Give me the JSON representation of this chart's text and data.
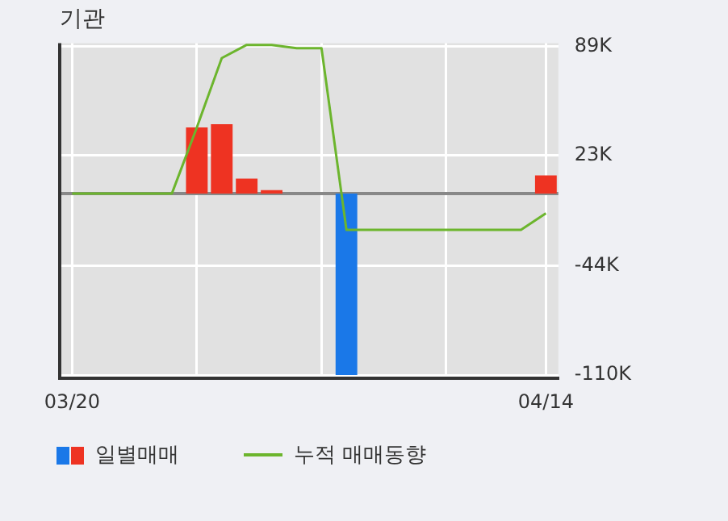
{
  "chart_data": {
    "type": "bar",
    "title": "기관",
    "categories": [
      "03/20",
      null,
      null,
      null,
      null,
      null,
      null,
      null,
      null,
      null,
      null,
      null,
      null,
      null,
      null,
      null,
      null,
      null,
      null,
      "04/14"
    ],
    "series": [
      {
        "name": "일별매매",
        "colors": [
          "#ee3322",
          "#ee3322",
          "#ee3322",
          "#ee3322",
          "#ee3322",
          "#ee3322",
          "#ee3322",
          "#ee3322",
          "#ee3322",
          "#ee3322",
          "#ee3322",
          "#1a78e8",
          "#ee3322",
          "#ee3322",
          "#ee3322",
          "#ee3322",
          "#ee3322",
          "#ee3322",
          "#ee3322",
          "#ee3322"
        ],
        "values": [
          0,
          0,
          0,
          0,
          0,
          40000,
          42000,
          9000,
          2000,
          0,
          0,
          -110000,
          0,
          0,
          0,
          0,
          0,
          0,
          0,
          11000
        ]
      },
      {
        "name": "누적 매매동향",
        "type": "line",
        "color": "#6cb52d",
        "values": [
          0,
          0,
          0,
          0,
          0,
          40000,
          82000,
          90000,
          90000,
          88000,
          88000,
          -22000,
          -22000,
          -22000,
          -22000,
          -22000,
          -22000,
          -22000,
          -22000,
          -12000
        ]
      }
    ],
    "ylim": [
      -112000,
      91000
    ],
    "yticks": [
      {
        "value": -110000,
        "label": "-110K"
      },
      {
        "value": -44000,
        "label": "-44K"
      },
      {
        "value": 23000,
        "label": "23K"
      },
      {
        "value": 89000,
        "label": "89K"
      }
    ],
    "ref_lines": [
      {
        "axis": "y",
        "value": 0,
        "color": "#888888"
      }
    ],
    "grid": true,
    "legend": "bottom left",
    "marker": "none",
    "line_style": "solid"
  }
}
